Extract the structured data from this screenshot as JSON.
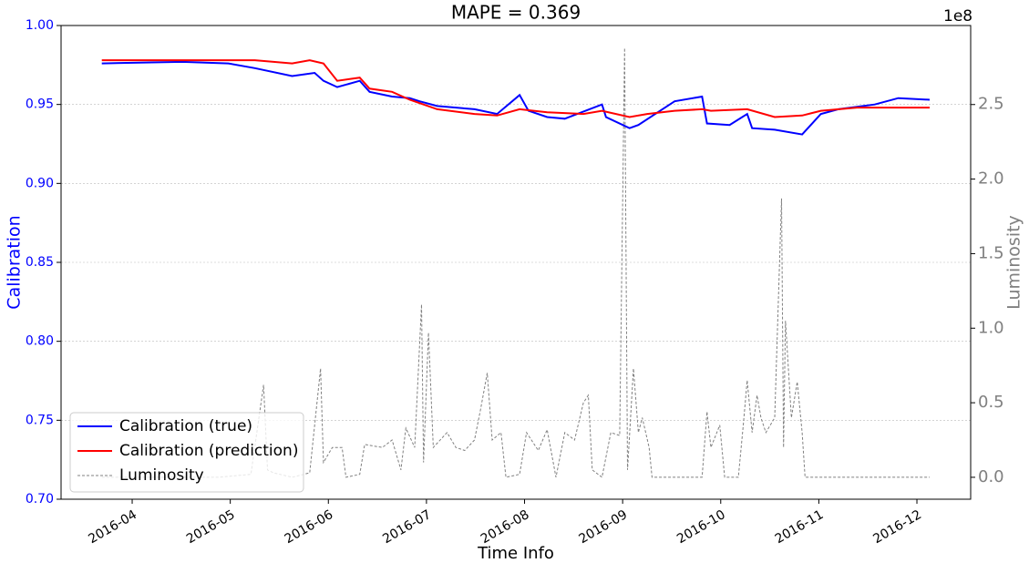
{
  "chart_data": {
    "type": "line",
    "title": "MAPE = 0.369",
    "xlabel": "Time Info",
    "ylabel": "Calibration",
    "y2label": "Luminosity",
    "y2_offset_label": "1e8",
    "ylabel_color": "blue",
    "y2label_color": "gray",
    "xlim": [
      3.275,
      12.548
    ],
    "xticks": [
      {
        "value": 4,
        "label": "2016-04"
      },
      {
        "value": 5,
        "label": "2016-05"
      },
      {
        "value": 6,
        "label": "2016-06"
      },
      {
        "value": 7,
        "label": "2016-07"
      },
      {
        "value": 8,
        "label": "2016-08"
      },
      {
        "value": 9,
        "label": "2016-09"
      },
      {
        "value": 10,
        "label": "2016-10"
      },
      {
        "value": 11,
        "label": "2016-11"
      },
      {
        "value": 12,
        "label": "2016-12"
      }
    ],
    "ylim": [
      0.7,
      1.0
    ],
    "yticks": [
      {
        "value": 0.7,
        "label": "0.70"
      },
      {
        "value": 0.75,
        "label": "0.75"
      },
      {
        "value": 0.8,
        "label": "0.80"
      },
      {
        "value": 0.85,
        "label": "0.85"
      },
      {
        "value": 0.9,
        "label": "0.90"
      },
      {
        "value": 0.95,
        "label": "0.95"
      },
      {
        "value": 1.0,
        "label": "1.00"
      }
    ],
    "y2lim": [
      -0.147,
      3.03
    ],
    "y2ticks": [
      {
        "value": 0,
        "label": "0.0"
      },
      {
        "value": 0.5,
        "label": "0.5"
      },
      {
        "value": 1,
        "label": "1.0"
      },
      {
        "value": 1.5,
        "label": "1.5"
      },
      {
        "value": 2,
        "label": "2.0"
      },
      {
        "value": 2.5,
        "label": "2.5"
      }
    ],
    "grid": true,
    "legend": "lower left",
    "series": [
      {
        "name": "Calibration (true)",
        "color": "blue",
        "linestyle": "solid",
        "x": [
          3.69,
          4.51,
          4.98,
          5.25,
          5.63,
          5.86,
          5.95,
          6.09,
          6.32,
          6.42,
          6.65,
          6.83,
          6.93,
          7.11,
          7.49,
          7.72,
          7.95,
          8.04,
          8.23,
          8.41,
          8.79,
          8.83,
          9.07,
          9.16,
          9.53,
          9.81,
          9.86,
          10.09,
          10.27,
          10.32,
          10.55,
          10.83,
          11.02,
          11.2,
          11.57,
          11.81,
          12.13
        ],
        "values": [
          0.976,
          0.977,
          0.976,
          0.973,
          0.968,
          0.97,
          0.965,
          0.961,
          0.965,
          0.958,
          0.955,
          0.954,
          0.952,
          0.949,
          0.947,
          0.944,
          0.956,
          0.946,
          0.942,
          0.941,
          0.95,
          0.942,
          0.935,
          0.937,
          0.952,
          0.955,
          0.938,
          0.937,
          0.944,
          0.935,
          0.934,
          0.931,
          0.944,
          0.947,
          0.95,
          0.954,
          0.953
        ]
      },
      {
        "name": "Calibration (prediction)",
        "color": "red",
        "linestyle": "solid",
        "x": [
          3.69,
          4.51,
          5.25,
          5.63,
          5.81,
          5.95,
          6.09,
          6.32,
          6.42,
          6.65,
          6.83,
          7.11,
          7.49,
          7.72,
          7.95,
          8.23,
          8.6,
          8.79,
          9.07,
          9.25,
          9.53,
          9.81,
          9.9,
          10.27,
          10.55,
          10.83,
          11.02,
          11.39,
          12.13
        ],
        "values": [
          0.978,
          0.978,
          0.978,
          0.976,
          0.978,
          0.976,
          0.965,
          0.967,
          0.96,
          0.958,
          0.953,
          0.947,
          0.944,
          0.943,
          0.947,
          0.945,
          0.944,
          0.946,
          0.942,
          0.944,
          0.946,
          0.947,
          0.946,
          0.947,
          0.942,
          0.943,
          0.946,
          0.948,
          0.948
        ]
      },
      {
        "name": "Luminosity",
        "color": "gray",
        "linestyle": "dashed",
        "axis": "y2",
        "x": [
          3.69,
          4.88,
          5.21,
          5.34,
          5.38,
          5.44,
          5.63,
          5.81,
          5.92,
          5.95,
          6.04,
          6.14,
          6.18,
          6.32,
          6.37,
          6.55,
          6.65,
          6.74,
          6.79,
          6.88,
          6.95,
          6.97,
          7.02,
          7.07,
          7.21,
          7.3,
          7.39,
          7.49,
          7.55,
          7.62,
          7.67,
          7.76,
          7.81,
          7.95,
          8.02,
          8.14,
          8.23,
          8.32,
          8.41,
          8.51,
          8.6,
          8.65,
          8.69,
          8.79,
          8.88,
          8.97,
          9.02,
          9.05,
          9.11,
          9.16,
          9.2,
          9.27,
          9.3,
          9.81,
          9.86,
          9.9,
          9.99,
          10.04,
          10.18,
          10.23,
          10.27,
          10.32,
          10.37,
          10.41,
          10.46,
          10.55,
          10.62,
          10.64,
          10.66,
          10.72,
          10.78,
          10.83,
          10.86,
          12.13
        ],
        "values": [
          0,
          0,
          0.02,
          0.62,
          0.05,
          0.03,
          0,
          0.03,
          0.73,
          0.1,
          0.2,
          0.2,
          0,
          0.02,
          0.22,
          0.2,
          0.25,
          0.05,
          0.33,
          0.2,
          1.16,
          0.1,
          0.97,
          0.2,
          0.3,
          0.2,
          0.18,
          0.25,
          0.45,
          0.7,
          0.25,
          0.3,
          0,
          0.02,
          0.3,
          0.18,
          0.32,
          0,
          0.3,
          0.25,
          0.5,
          0.55,
          0.05,
          0,
          0.3,
          0.28,
          2.88,
          0.05,
          0.73,
          0.3,
          0.4,
          0.2,
          0,
          0,
          0.44,
          0.2,
          0.35,
          0,
          0,
          0.35,
          0.65,
          0.3,
          0.55,
          0.4,
          0.3,
          0.4,
          1.87,
          0.2,
          1.05,
          0.4,
          0.64,
          0.3,
          0,
          0
        ]
      }
    ]
  }
}
